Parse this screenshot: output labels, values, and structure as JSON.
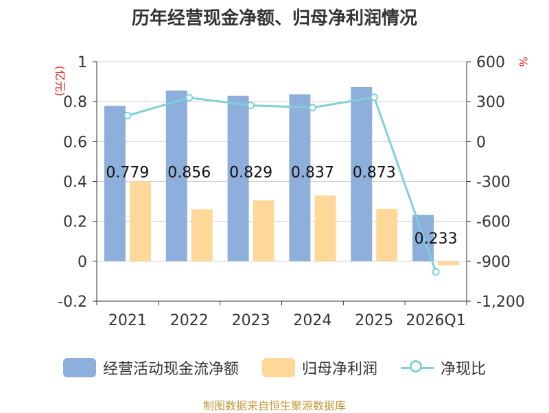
{
  "title": "历年经营现金净额、归母净利润情况",
  "source": "制图数据来自恒生聚源数据库",
  "colors": {
    "cash": "#8eaedb",
    "profit": "#fdd898",
    "ratio": "#7fd0d8",
    "unit_red": "#e02020",
    "source": "#c09a3c"
  },
  "chart_data": {
    "type": "bar",
    "categories": [
      "2021",
      "2022",
      "2023",
      "2024",
      "2025",
      "2026Q1"
    ],
    "left_axis": {
      "unit_label": "(亿元)",
      "ylim": [
        -0.2,
        1
      ],
      "ticks": [
        -0.2,
        0,
        0.2,
        0.4,
        0.6,
        0.8,
        1
      ],
      "tick_labels": [
        "-0.2",
        "0",
        "0.2",
        "0.4",
        "0.6",
        "0.8",
        "1"
      ]
    },
    "right_axis": {
      "unit_label": "%",
      "ylim": [
        -1200,
        600
      ],
      "ticks": [
        -1200,
        -900,
        -600,
        -300,
        0,
        300,
        600
      ],
      "tick_labels": [
        "-1,200",
        "-900",
        "-600",
        "-300",
        "0",
        "300",
        "600"
      ]
    },
    "series": [
      {
        "name": "经营活动现金流净额",
        "kind": "bar",
        "axis": "left",
        "values": [
          0.779,
          0.856,
          0.829,
          0.837,
          0.873,
          0.233
        ],
        "data_labels": [
          "0.779",
          "0.856",
          "0.829",
          "0.837",
          "0.873",
          "0.233"
        ]
      },
      {
        "name": "归母净利润",
        "kind": "bar",
        "axis": "left",
        "values": [
          0.4,
          0.26,
          0.305,
          0.33,
          0.262,
          -0.02
        ]
      },
      {
        "name": "净现比",
        "kind": "line",
        "axis": "right",
        "values": [
          195,
          330,
          272,
          255,
          333,
          -980
        ]
      }
    ],
    "grid": true,
    "legend_position": "bottom"
  }
}
